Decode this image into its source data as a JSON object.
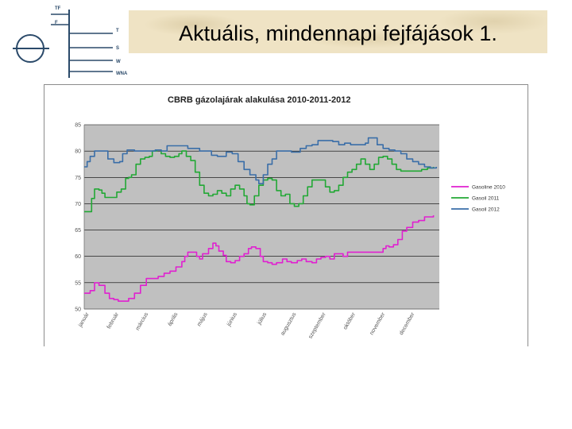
{
  "slide": {
    "title": "Aktuális, mindennapi fejfájások 1."
  },
  "logo": {
    "labels": [
      "TF",
      "F",
      "T",
      "S",
      "W",
      "WNA"
    ]
  },
  "chart_data": {
    "type": "line",
    "title": "CBRB gázolajárak alakulása 2010-2011-2012",
    "xlabel": "",
    "ylabel": "",
    "ylim": [
      50,
      85
    ],
    "yticks": [
      "85",
      "80",
      "75",
      "70",
      "65",
      "60",
      "55",
      "50"
    ],
    "categories": [
      "január",
      "február",
      "március",
      "április",
      "május",
      "június",
      "július",
      "augusztus",
      "szeptember",
      "október",
      "november",
      "december"
    ],
    "grid": true,
    "legend_position": "right",
    "series": [
      {
        "name": "Gasoline 2010",
        "color": "#e020d0",
        "values": [
          [
            0,
            53
          ],
          [
            0.2,
            53.5
          ],
          [
            0.35,
            55
          ],
          [
            0.5,
            54.5
          ],
          [
            0.7,
            53
          ],
          [
            0.85,
            52
          ],
          [
            1.0,
            51.8
          ],
          [
            1.15,
            51.5
          ],
          [
            1.3,
            51.5
          ],
          [
            1.5,
            52
          ],
          [
            1.7,
            53
          ],
          [
            1.9,
            54.5
          ],
          [
            2.1,
            55.8
          ],
          [
            2.3,
            55.8
          ],
          [
            2.5,
            56.2
          ],
          [
            2.7,
            56.8
          ],
          [
            2.9,
            57.2
          ],
          [
            3.1,
            58
          ],
          [
            3.3,
            59
          ],
          [
            3.4,
            60
          ],
          [
            3.5,
            60.8
          ],
          [
            3.7,
            60.8
          ],
          [
            3.8,
            60
          ],
          [
            3.9,
            59.5
          ],
          [
            4.0,
            60.5
          ],
          [
            4.2,
            61.5
          ],
          [
            4.35,
            62.5
          ],
          [
            4.45,
            62
          ],
          [
            4.55,
            61
          ],
          [
            4.7,
            60.2
          ],
          [
            4.8,
            59
          ],
          [
            4.95,
            58.8
          ],
          [
            5.1,
            59.2
          ],
          [
            5.25,
            60
          ],
          [
            5.4,
            60.5
          ],
          [
            5.55,
            61.5
          ],
          [
            5.65,
            61.8
          ],
          [
            5.8,
            61.5
          ],
          [
            5.95,
            60
          ],
          [
            6.05,
            59
          ],
          [
            6.2,
            58.8
          ],
          [
            6.35,
            58.5
          ],
          [
            6.5,
            58.8
          ],
          [
            6.7,
            59.5
          ],
          [
            6.85,
            59
          ],
          [
            7.0,
            58.8
          ],
          [
            7.2,
            59.2
          ],
          [
            7.35,
            59.5
          ],
          [
            7.5,
            59
          ],
          [
            7.7,
            58.8
          ],
          [
            7.85,
            59.5
          ],
          [
            8.0,
            59.8
          ],
          [
            8.15,
            60
          ],
          [
            8.3,
            59.5
          ],
          [
            8.45,
            60.5
          ],
          [
            8.6,
            60.5
          ],
          [
            8.75,
            60
          ],
          [
            8.9,
            60.8
          ],
          [
            9.1,
            60.8
          ],
          [
            9.5,
            60.8
          ],
          [
            9.9,
            60.8
          ],
          [
            10.1,
            61.5
          ],
          [
            10.2,
            62
          ],
          [
            10.3,
            61.8
          ],
          [
            10.45,
            62.2
          ],
          [
            10.6,
            63.2
          ],
          [
            10.75,
            64.8
          ],
          [
            10.9,
            65.5
          ],
          [
            11.1,
            66.5
          ],
          [
            11.3,
            66.8
          ],
          [
            11.5,
            67.5
          ],
          [
            11.8,
            67.8
          ]
        ]
      },
      {
        "name": "Gasoil 2011",
        "color": "#22a835",
        "values": [
          [
            0,
            68.5
          ],
          [
            0.15,
            68.5
          ],
          [
            0.25,
            71
          ],
          [
            0.35,
            72.8
          ],
          [
            0.5,
            72.6
          ],
          [
            0.6,
            72
          ],
          [
            0.7,
            71.2
          ],
          [
            0.9,
            71.2
          ],
          [
            1.0,
            71.2
          ],
          [
            1.1,
            72.2
          ],
          [
            1.25,
            72.8
          ],
          [
            1.4,
            74.8
          ],
          [
            1.5,
            75
          ],
          [
            1.6,
            75.5
          ],
          [
            1.75,
            77.5
          ],
          [
            1.9,
            78.5
          ],
          [
            2.05,
            78.8
          ],
          [
            2.2,
            79
          ],
          [
            2.3,
            80
          ],
          [
            2.45,
            80.2
          ],
          [
            2.6,
            79.5
          ],
          [
            2.75,
            79
          ],
          [
            2.9,
            78.8
          ],
          [
            3.05,
            79
          ],
          [
            3.2,
            79.5
          ],
          [
            3.3,
            80
          ],
          [
            3.45,
            79
          ],
          [
            3.6,
            78.2
          ],
          [
            3.75,
            76
          ],
          [
            3.9,
            73.5
          ],
          [
            4.05,
            72
          ],
          [
            4.2,
            71.5
          ],
          [
            4.35,
            71.8
          ],
          [
            4.5,
            72.5
          ],
          [
            4.65,
            72
          ],
          [
            4.8,
            71.5
          ],
          [
            4.95,
            72.8
          ],
          [
            5.1,
            73.5
          ],
          [
            5.25,
            72.8
          ],
          [
            5.4,
            71.5
          ],
          [
            5.5,
            70
          ],
          [
            5.6,
            69.8
          ],
          [
            5.75,
            71.5
          ],
          [
            5.9,
            73.5
          ],
          [
            6.05,
            74.5
          ],
          [
            6.2,
            74.8
          ],
          [
            6.35,
            74.5
          ],
          [
            6.5,
            72.5
          ],
          [
            6.65,
            71.5
          ],
          [
            6.8,
            71.8
          ],
          [
            6.95,
            70
          ],
          [
            7.1,
            69.5
          ],
          [
            7.25,
            70
          ],
          [
            7.4,
            71.5
          ],
          [
            7.55,
            73.2
          ],
          [
            7.7,
            74.5
          ],
          [
            7.85,
            74.5
          ],
          [
            8.0,
            74.5
          ],
          [
            8.15,
            73.2
          ],
          [
            8.3,
            72.2
          ],
          [
            8.45,
            72.5
          ],
          [
            8.6,
            73.5
          ],
          [
            8.75,
            75
          ],
          [
            8.9,
            76
          ],
          [
            9.05,
            76.5
          ],
          [
            9.2,
            77.5
          ],
          [
            9.35,
            78.5
          ],
          [
            9.5,
            77.5
          ],
          [
            9.65,
            76.5
          ],
          [
            9.8,
            77.5
          ],
          [
            9.95,
            78.8
          ],
          [
            10.1,
            79
          ],
          [
            10.25,
            78.5
          ],
          [
            10.4,
            77.5
          ],
          [
            10.55,
            76.5
          ],
          [
            10.7,
            76.2
          ],
          [
            11.0,
            76.2
          ],
          [
            11.2,
            76.2
          ],
          [
            11.4,
            76.5
          ],
          [
            11.6,
            76.8
          ],
          [
            11.8,
            77
          ]
        ]
      },
      {
        "name": "Gasoil 2012",
        "color": "#3a6ea8",
        "values": [
          [
            0,
            77
          ],
          [
            0.1,
            78
          ],
          [
            0.2,
            79
          ],
          [
            0.35,
            80
          ],
          [
            0.6,
            80
          ],
          [
            0.8,
            78.5
          ],
          [
            1.0,
            77.8
          ],
          [
            1.2,
            78
          ],
          [
            1.3,
            79.5
          ],
          [
            1.45,
            80.2
          ],
          [
            1.7,
            80
          ],
          [
            2.1,
            80
          ],
          [
            2.4,
            80.2
          ],
          [
            2.6,
            80
          ],
          [
            2.8,
            81
          ],
          [
            3.2,
            81
          ],
          [
            3.5,
            80.5
          ],
          [
            3.7,
            80.5
          ],
          [
            3.9,
            80
          ],
          [
            4.1,
            80
          ],
          [
            4.3,
            79.2
          ],
          [
            4.5,
            79
          ],
          [
            4.8,
            79.8
          ],
          [
            5.0,
            79.5
          ],
          [
            5.2,
            78
          ],
          [
            5.4,
            76.5
          ],
          [
            5.6,
            75.5
          ],
          [
            5.8,
            74.5
          ],
          [
            5.9,
            73.8
          ],
          [
            6.05,
            75.5
          ],
          [
            6.2,
            77.5
          ],
          [
            6.35,
            78.5
          ],
          [
            6.5,
            80
          ],
          [
            6.7,
            80
          ],
          [
            7.0,
            79.8
          ],
          [
            7.3,
            80.5
          ],
          [
            7.5,
            81
          ],
          [
            7.7,
            81.2
          ],
          [
            7.9,
            82
          ],
          [
            8.1,
            82
          ],
          [
            8.4,
            81.8
          ],
          [
            8.6,
            81.2
          ],
          [
            8.8,
            81.5
          ],
          [
            9.0,
            81.2
          ],
          [
            9.3,
            81.2
          ],
          [
            9.5,
            81.5
          ],
          [
            9.6,
            82.5
          ],
          [
            9.8,
            82.5
          ],
          [
            9.9,
            81.2
          ],
          [
            10.1,
            80.5
          ],
          [
            10.3,
            80.2
          ],
          [
            10.5,
            80
          ],
          [
            10.7,
            79.5
          ],
          [
            10.9,
            78.5
          ],
          [
            11.1,
            78
          ],
          [
            11.3,
            77.5
          ],
          [
            11.5,
            77
          ],
          [
            11.7,
            76.8
          ],
          [
            11.9,
            77
          ]
        ]
      }
    ]
  }
}
